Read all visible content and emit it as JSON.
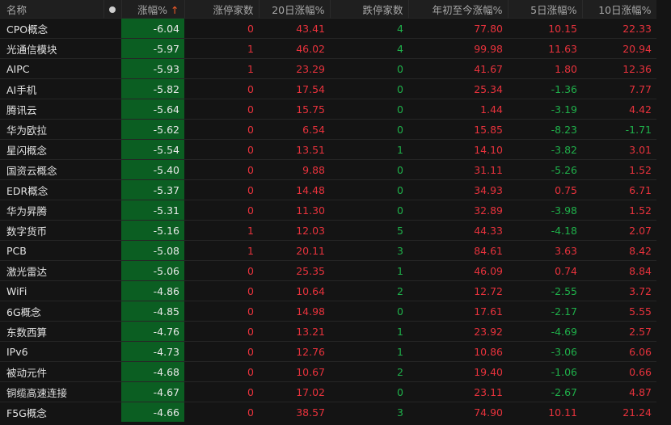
{
  "headers": {
    "name": "名称",
    "change": "涨幅%",
    "sort_arrow": "↑",
    "limit_up": "涨停家数",
    "d20": "20日涨幅%",
    "limit_down": "跌停家数",
    "ytd": "年初至今涨幅%",
    "d5": "5日涨幅%",
    "d10": "10日涨幅%"
  },
  "colors": {
    "up": "#e8323c",
    "down": "#1fb04a",
    "change_bg": "#0b5e22"
  },
  "rows": [
    {
      "name": "CPO概念",
      "change": "-6.04",
      "limit_up": "0",
      "d20": "43.41",
      "limit_down": "4",
      "ytd": "77.80",
      "d5": "10.15",
      "d10": "22.33"
    },
    {
      "name": "光通信模块",
      "change": "-5.97",
      "limit_up": "1",
      "d20": "46.02",
      "limit_down": "4",
      "ytd": "99.98",
      "d5": "11.63",
      "d10": "20.94"
    },
    {
      "name": "AIPC",
      "change": "-5.93",
      "limit_up": "1",
      "d20": "23.29",
      "limit_down": "0",
      "ytd": "41.67",
      "d5": "1.80",
      "d10": "12.36"
    },
    {
      "name": "AI手机",
      "change": "-5.82",
      "limit_up": "0",
      "d20": "17.54",
      "limit_down": "0",
      "ytd": "25.34",
      "d5": "-1.36",
      "d10": "7.77"
    },
    {
      "name": "腾讯云",
      "change": "-5.64",
      "limit_up": "0",
      "d20": "15.75",
      "limit_down": "0",
      "ytd": "1.44",
      "d5": "-3.19",
      "d10": "4.42"
    },
    {
      "name": "华为欧拉",
      "change": "-5.62",
      "limit_up": "0",
      "d20": "6.54",
      "limit_down": "0",
      "ytd": "15.85",
      "d5": "-8.23",
      "d10": "-1.71"
    },
    {
      "name": "星闪概念",
      "change": "-5.54",
      "limit_up": "0",
      "d20": "13.51",
      "limit_down": "1",
      "ytd": "14.10",
      "d5": "-3.82",
      "d10": "3.01"
    },
    {
      "name": "国资云概念",
      "change": "-5.40",
      "limit_up": "0",
      "d20": "9.88",
      "limit_down": "0",
      "ytd": "31.11",
      "d5": "-5.26",
      "d10": "1.52"
    },
    {
      "name": "EDR概念",
      "change": "-5.37",
      "limit_up": "0",
      "d20": "14.48",
      "limit_down": "0",
      "ytd": "34.93",
      "d5": "0.75",
      "d10": "6.71"
    },
    {
      "name": "华为昇腾",
      "change": "-5.31",
      "limit_up": "0",
      "d20": "11.30",
      "limit_down": "0",
      "ytd": "32.89",
      "d5": "-3.98",
      "d10": "1.52"
    },
    {
      "name": "数字货币",
      "change": "-5.16",
      "limit_up": "1",
      "d20": "12.03",
      "limit_down": "5",
      "ytd": "44.33",
      "d5": "-4.18",
      "d10": "2.07"
    },
    {
      "name": "PCB",
      "change": "-5.08",
      "limit_up": "1",
      "d20": "20.11",
      "limit_down": "3",
      "ytd": "84.61",
      "d5": "3.63",
      "d10": "8.42"
    },
    {
      "name": "激光雷达",
      "change": "-5.06",
      "limit_up": "0",
      "d20": "25.35",
      "limit_down": "1",
      "ytd": "46.09",
      "d5": "0.74",
      "d10": "8.84"
    },
    {
      "name": "WiFi",
      "change": "-4.86",
      "limit_up": "0",
      "d20": "10.64",
      "limit_down": "2",
      "ytd": "12.72",
      "d5": "-2.55",
      "d10": "3.72"
    },
    {
      "name": "6G概念",
      "change": "-4.85",
      "limit_up": "0",
      "d20": "14.98",
      "limit_down": "0",
      "ytd": "17.61",
      "d5": "-2.17",
      "d10": "5.55"
    },
    {
      "name": "东数西算",
      "change": "-4.76",
      "limit_up": "0",
      "d20": "13.21",
      "limit_down": "1",
      "ytd": "23.92",
      "d5": "-4.69",
      "d10": "2.57"
    },
    {
      "name": "IPv6",
      "change": "-4.73",
      "limit_up": "0",
      "d20": "12.76",
      "limit_down": "1",
      "ytd": "10.86",
      "d5": "-3.06",
      "d10": "6.06"
    },
    {
      "name": "被动元件",
      "change": "-4.68",
      "limit_up": "0",
      "d20": "10.67",
      "limit_down": "2",
      "ytd": "19.40",
      "d5": "-1.06",
      "d10": "0.66"
    },
    {
      "name": "铜缆高速连接",
      "change": "-4.67",
      "limit_up": "0",
      "d20": "17.02",
      "limit_down": "0",
      "ytd": "23.11",
      "d5": "-2.67",
      "d10": "4.87"
    },
    {
      "name": "F5G概念",
      "change": "-4.66",
      "limit_up": "0",
      "d20": "38.57",
      "limit_down": "3",
      "ytd": "74.90",
      "d5": "10.11",
      "d10": "21.24"
    }
  ]
}
